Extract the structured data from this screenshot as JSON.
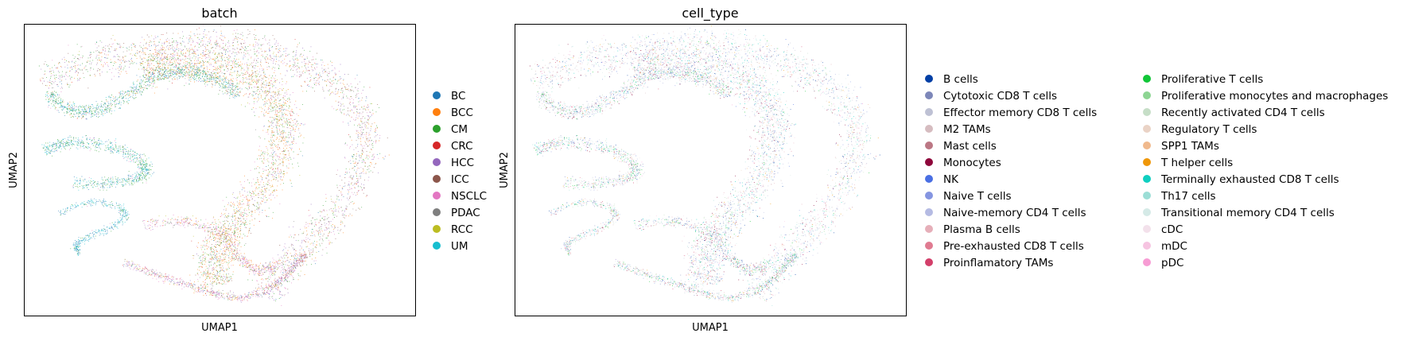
{
  "chart_data": [
    {
      "type": "scatter",
      "title": "batch",
      "xlabel": "UMAP1",
      "ylabel": "UMAP2",
      "grid": false,
      "legend_placement": "right",
      "legend": [
        {
          "name": "BC",
          "color": "#1f77b4"
        },
        {
          "name": "BCC",
          "color": "#ff7f0e"
        },
        {
          "name": "CM",
          "color": "#2ca02c"
        },
        {
          "name": "CRC",
          "color": "#d62728"
        },
        {
          "name": "HCC",
          "color": "#9467bd"
        },
        {
          "name": "ICC",
          "color": "#8c564b"
        },
        {
          "name": "NSCLC",
          "color": "#e377c2"
        },
        {
          "name": "PDAC",
          "color": "#7f7f7f"
        },
        {
          "name": "RCC",
          "color": "#bcbd22"
        },
        {
          "name": "UM",
          "color": "#17becf"
        }
      ]
    },
    {
      "type": "scatter",
      "title": "cell_type",
      "xlabel": "UMAP1",
      "ylabel": "UMAP2",
      "grid": false,
      "legend_placement": "right",
      "legend": [
        {
          "name": "B cells",
          "color": "#023fa5"
        },
        {
          "name": "Cytotoxic CD8 T cells",
          "color": "#7d87b9"
        },
        {
          "name": "Effector memory CD8 T cells",
          "color": "#bec1d4"
        },
        {
          "name": "M2 TAMs",
          "color": "#d6bcc0"
        },
        {
          "name": "Mast cells",
          "color": "#bb7784"
        },
        {
          "name": "Monocytes",
          "color": "#8e063b"
        },
        {
          "name": "NK",
          "color": "#4a6fe3"
        },
        {
          "name": "Naive T cells",
          "color": "#8595e1"
        },
        {
          "name": "Naive-memory CD4 T cells",
          "color": "#b5bbe3"
        },
        {
          "name": "Plasma B cells",
          "color": "#e6afb9"
        },
        {
          "name": "Pre-exhausted CD8 T cells",
          "color": "#e07b91"
        },
        {
          "name": "Proinflamatory TAMs",
          "color": "#d33f6a"
        },
        {
          "name": "Proliferative T cells",
          "color": "#11c638"
        },
        {
          "name": "Proliferative monocytes and macrophages",
          "color": "#8dd593"
        },
        {
          "name": "Recently activated CD4 T cells",
          "color": "#c6dec7"
        },
        {
          "name": "Regulatory T cells",
          "color": "#ead3c6"
        },
        {
          "name": "SPP1 TAMs",
          "color": "#f0b98d"
        },
        {
          "name": "T helper cells",
          "color": "#ef9708"
        },
        {
          "name": "Terminally exhausted CD8 T cells",
          "color": "#0fcfc0"
        },
        {
          "name": "Th17 cells",
          "color": "#9cded6"
        },
        {
          "name": "Transitional memory CD4 T cells",
          "color": "#d5eae7"
        },
        {
          "name": "cDC",
          "color": "#f3e1eb"
        },
        {
          "name": "mDC",
          "color": "#f6c4e1"
        },
        {
          "name": "pDC",
          "color": "#f79cd4"
        }
      ]
    }
  ]
}
